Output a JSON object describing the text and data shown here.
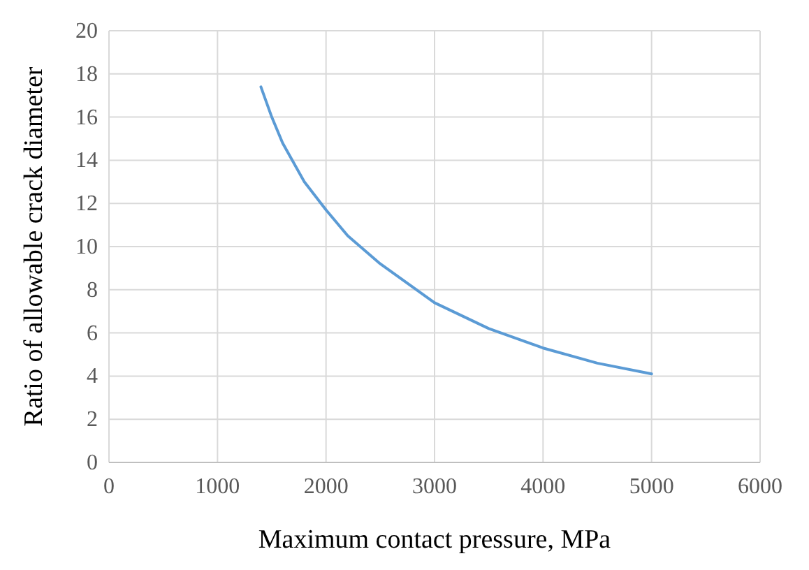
{
  "chart_data": {
    "type": "line",
    "xlabel": "Maximum contact pressure,  MPa",
    "ylabel": "Ratio of allowable crack diameter",
    "x": [
      1400,
      1500,
      1600,
      1800,
      2000,
      2200,
      2500,
      3000,
      3500,
      4000,
      4500,
      5000
    ],
    "series": [
      {
        "color": "#5b9bd5",
        "values": [
          17.4,
          16.0,
          14.8,
          13.0,
          11.7,
          10.5,
          9.2,
          7.4,
          6.2,
          5.3,
          4.6,
          4.1
        ]
      }
    ],
    "xlim": [
      0,
      6000
    ],
    "xticks": [
      0,
      1000,
      2000,
      3000,
      4000,
      5000,
      6000
    ],
    "ylim": [
      0,
      20
    ],
    "yticks": [
      0,
      2,
      4,
      6,
      8,
      10,
      12,
      14,
      16,
      18,
      20
    ],
    "grid": true
  }
}
